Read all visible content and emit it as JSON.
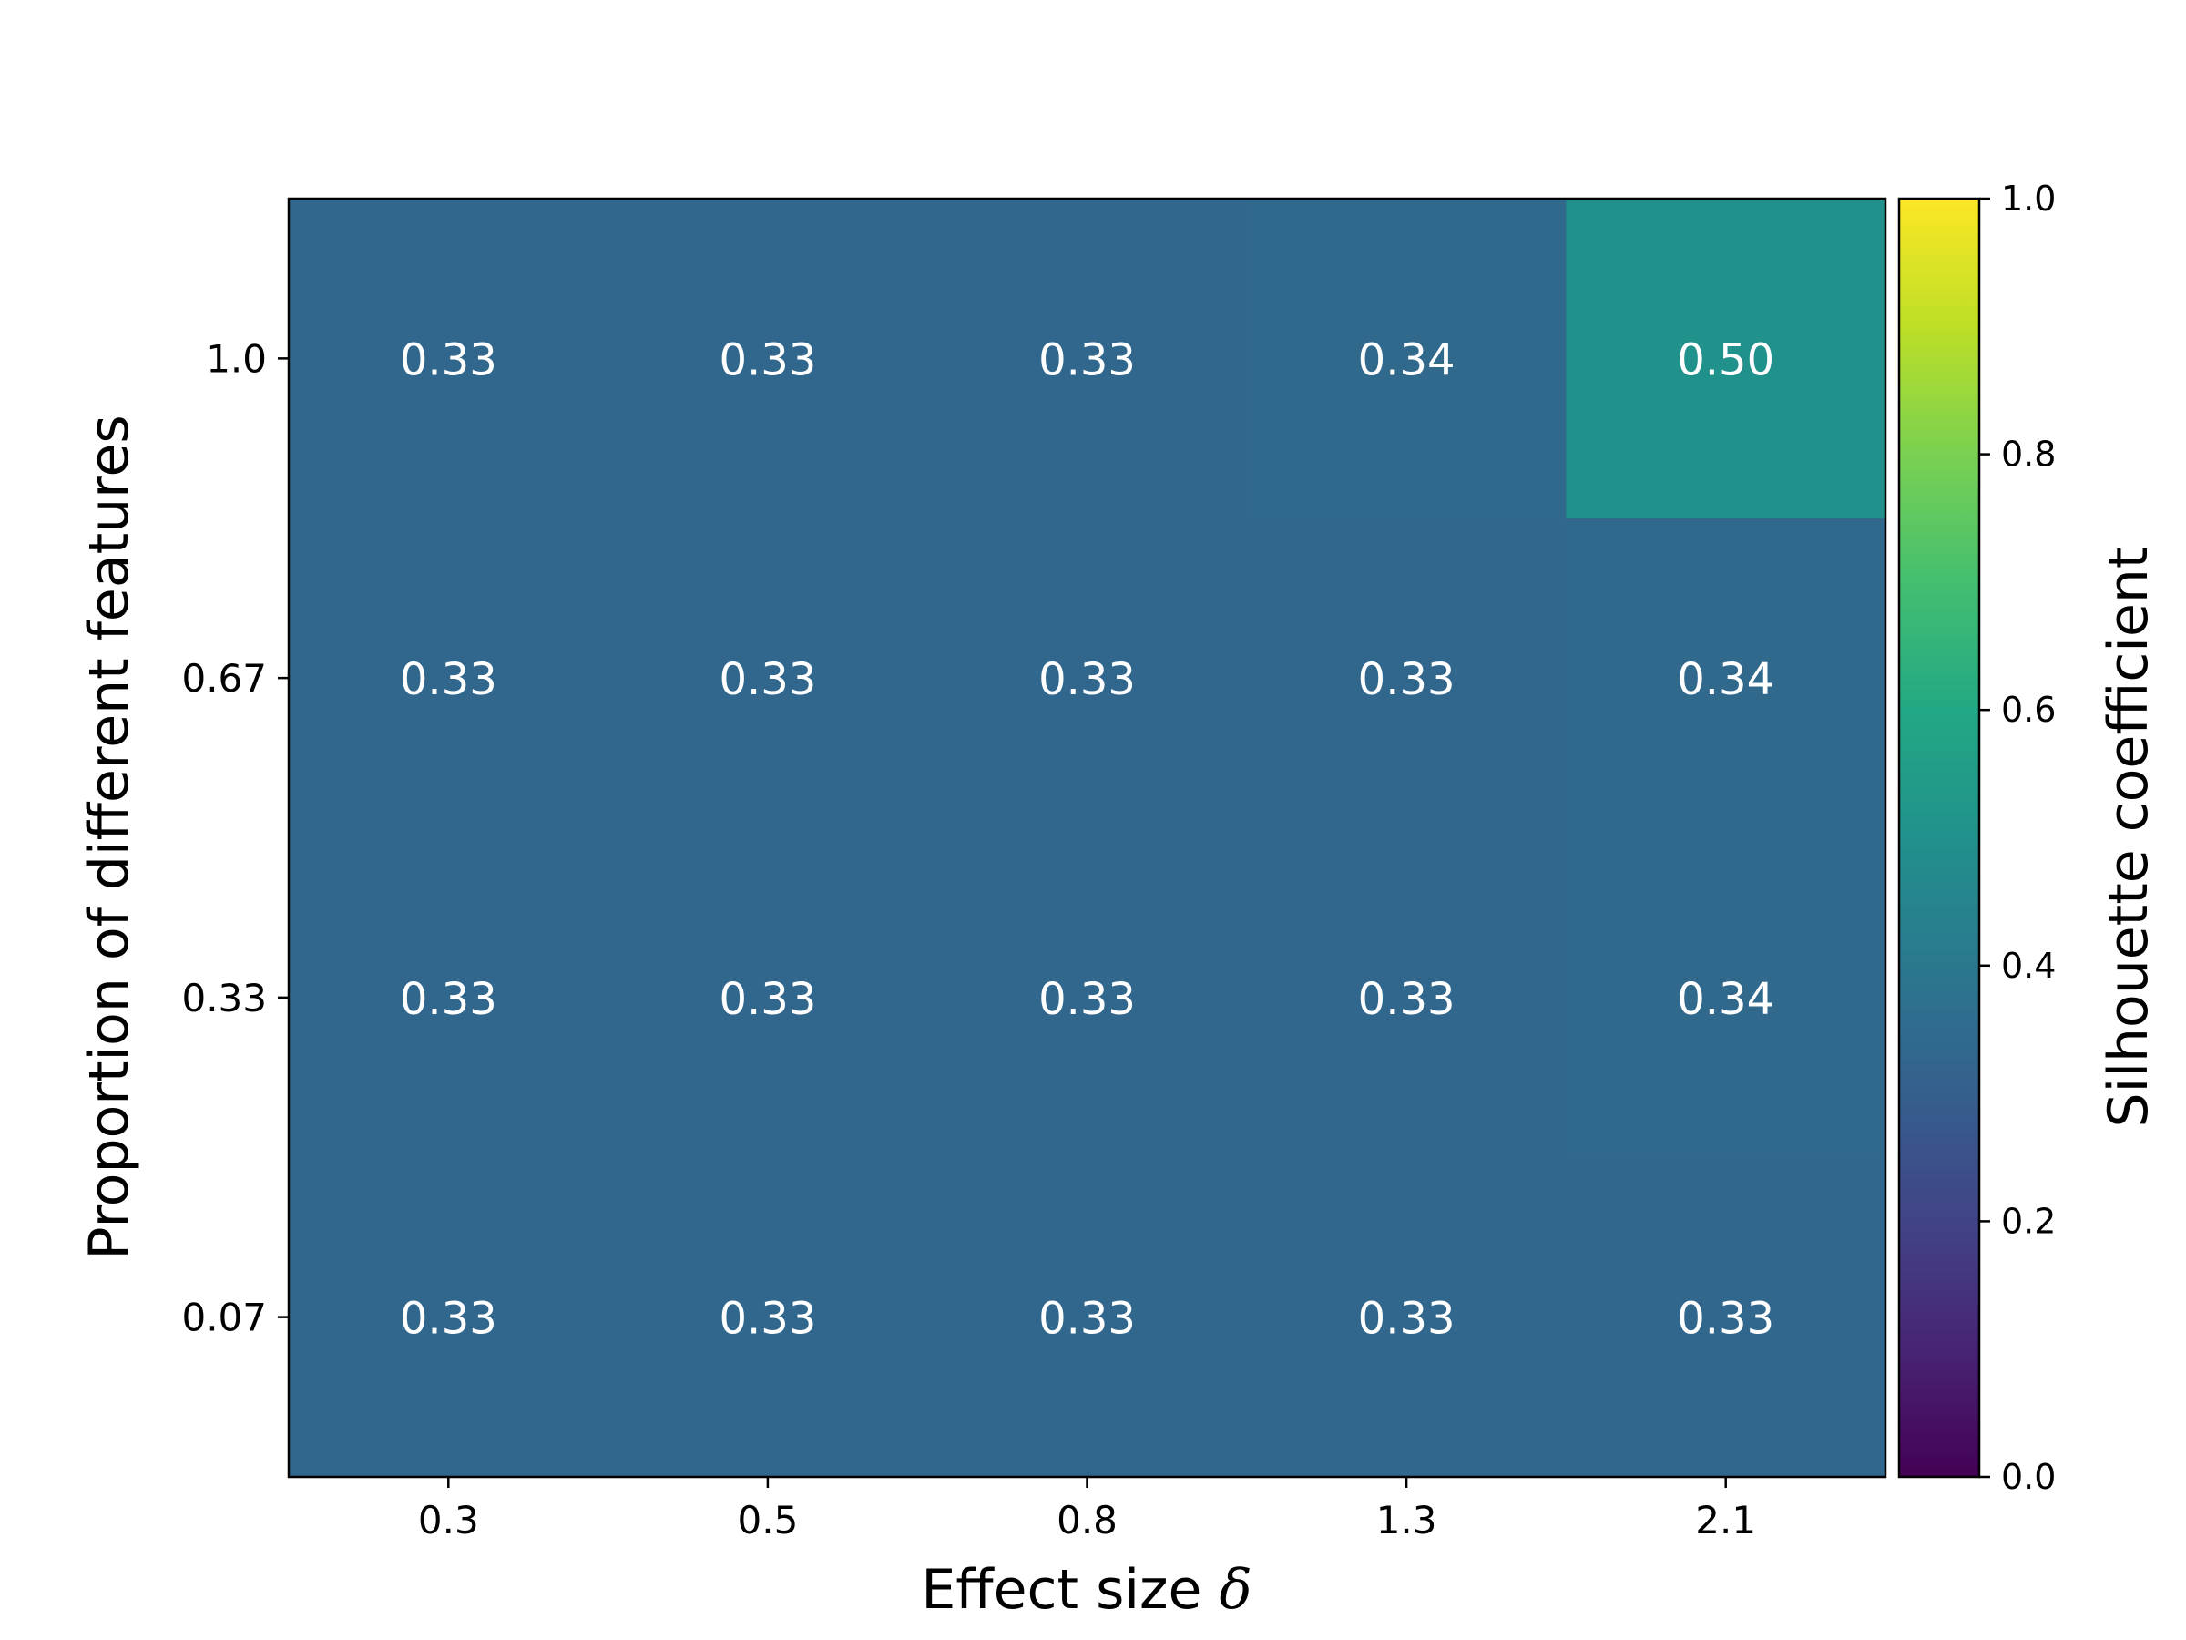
{
  "chart_data": {
    "type": "heatmap",
    "title": "",
    "xlabel": "Effect size",
    "xlabel_symbol": "δ",
    "ylabel": "Proportion of different features",
    "x_categories": [
      "0.3",
      "0.5",
      "0.8",
      "1.3",
      "2.1"
    ],
    "y_categories": [
      "1.0",
      "0.67",
      "0.33",
      "0.07"
    ],
    "values": [
      [
        0.33,
        0.33,
        0.33,
        0.34,
        0.5
      ],
      [
        0.33,
        0.33,
        0.33,
        0.33,
        0.34
      ],
      [
        0.33,
        0.33,
        0.33,
        0.33,
        0.34
      ],
      [
        0.33,
        0.33,
        0.33,
        0.33,
        0.33
      ]
    ],
    "value_labels": [
      [
        "0.33",
        "0.33",
        "0.33",
        "0.34",
        "0.50"
      ],
      [
        "0.33",
        "0.33",
        "0.33",
        "0.33",
        "0.34"
      ],
      [
        "0.33",
        "0.33",
        "0.33",
        "0.33",
        "0.34"
      ],
      [
        "0.33",
        "0.33",
        "0.33",
        "0.33",
        "0.33"
      ]
    ],
    "colorbar": {
      "label": "Silhouette coefficient",
      "range": [
        0.0,
        1.0
      ],
      "ticks": [
        "0.0",
        "0.2",
        "0.4",
        "0.6",
        "0.8",
        "1.0"
      ],
      "colormap": "viridis"
    },
    "colors": {
      "low_cell": "#33688c",
      "high_cell": "#21918c",
      "annotation_text": "#ffffff"
    }
  }
}
